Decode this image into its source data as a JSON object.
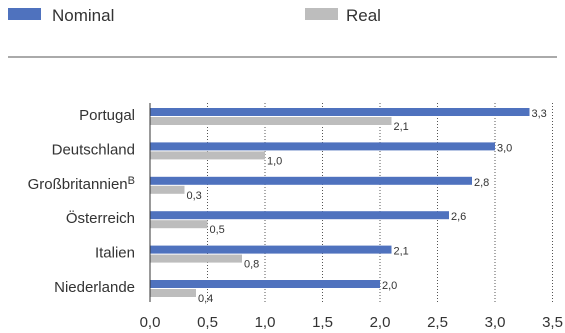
{
  "chart_data": {
    "type": "bar",
    "orientation": "horizontal",
    "categories": [
      "Portugal",
      "Deutschland",
      "Großbritannien",
      "Österreich",
      "Italien",
      "Niederlande"
    ],
    "category_superscripts": [
      "",
      "",
      "B",
      "",
      "",
      ""
    ],
    "series": [
      {
        "name": "Nominal",
        "color": "#4f72be",
        "values": [
          3.3,
          3.0,
          2.8,
          2.6,
          2.1,
          2.0
        ],
        "labels": [
          "3,3",
          "3,0",
          "2,8",
          "2,6",
          "2,1",
          "2,0"
        ]
      },
      {
        "name": "Real",
        "color": "#bdbdbd",
        "values": [
          2.1,
          1.0,
          0.3,
          0.5,
          0.8,
          0.4
        ],
        "labels": [
          "2,1",
          "1,0",
          "0,3",
          "0,5",
          "0,8",
          "0,4"
        ]
      }
    ],
    "xlim": [
      0,
      3.5
    ],
    "ticks": [
      0,
      0.5,
      1.0,
      1.5,
      2.0,
      2.5,
      3.0,
      3.5
    ],
    "tick_labels": [
      "0,0",
      "0,5",
      "1,0",
      "1,5",
      "2,0",
      "2,5",
      "3,0",
      "3,5"
    ],
    "grid": "vertical-dotted",
    "legend_position": "top-left"
  }
}
